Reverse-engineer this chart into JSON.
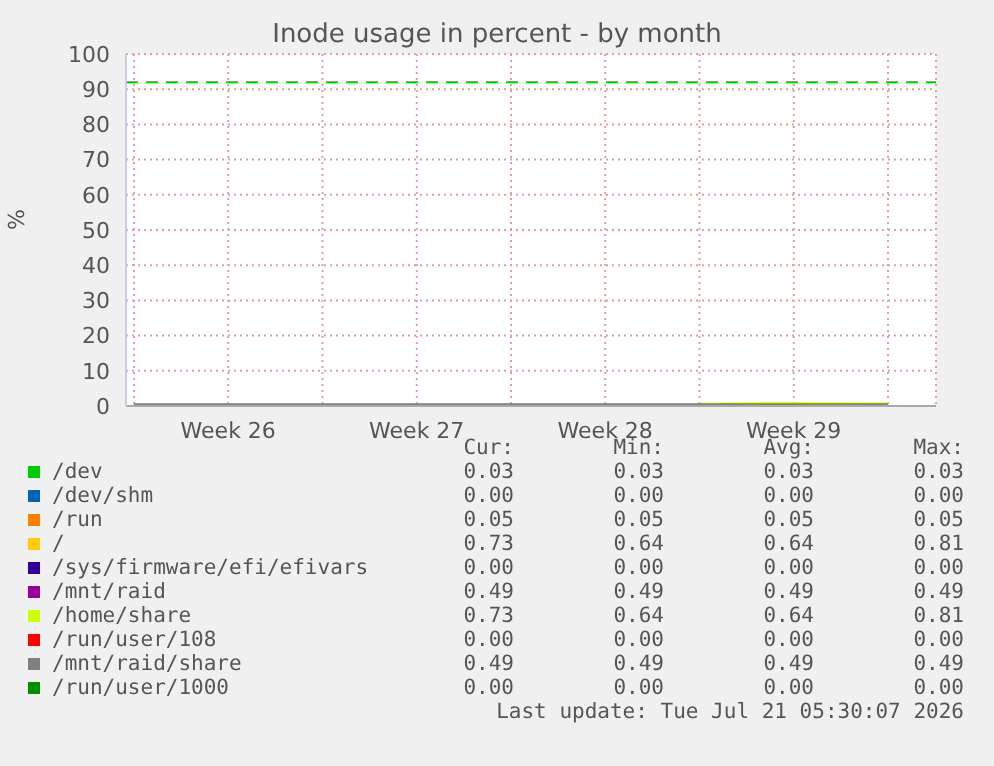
{
  "chart_data": {
    "type": "line",
    "title": "Inode usage in percent - by month",
    "ylabel": "%",
    "categories": [
      null,
      "Week 26",
      null,
      "Week 27",
      null,
      "Week 28",
      null,
      "Week 29",
      null
    ],
    "ylim": [
      0,
      100
    ],
    "yticks": [
      0,
      10,
      20,
      30,
      40,
      50,
      60,
      70,
      80,
      90,
      100
    ],
    "grid": true,
    "legend": "bottom",
    "marker": "none",
    "line_style": "solid",
    "series": [
      {
        "name": "/dev",
        "color": "#00cc00",
        "values": [
          null,
          null,
          null,
          null,
          null,
          null,
          null,
          null,
          null
        ]
      },
      {
        "name": "/dev/shm",
        "color": "#0066b3",
        "values": [
          null,
          null,
          null,
          null,
          null,
          null,
          null,
          null,
          null
        ]
      },
      {
        "name": "/run",
        "color": "#ff8000",
        "values": [
          null,
          null,
          null,
          null,
          null,
          null,
          null,
          null,
          null
        ]
      },
      {
        "name": "/",
        "color": "#ffcc00",
        "values": [
          null,
          null,
          null,
          null,
          null,
          null,
          null,
          null,
          null
        ]
      },
      {
        "name": "/sys/firmware/efi/efivars",
        "color": "#330099",
        "values": [
          null,
          null,
          null,
          null,
          null,
          null,
          null,
          null,
          null
        ]
      },
      {
        "name": "/mnt/raid",
        "color": "#990099",
        "values": [
          null,
          null,
          null,
          null,
          null,
          null,
          null,
          null,
          null
        ]
      },
      {
        "name": "/home/share",
        "color": "#ccff00",
        "values": [
          null,
          null,
          null,
          null,
          null,
          null,
          0.64,
          0.81,
          0.73
        ]
      },
      {
        "name": "/run/user/108",
        "color": "#ff0000",
        "values": [
          null,
          null,
          null,
          null,
          null,
          null,
          null,
          null,
          null
        ]
      },
      {
        "name": "/mnt/raid/share",
        "color": "#808080",
        "values": [
          0.49,
          0.49,
          0.49,
          0.49,
          0.49,
          0.49,
          0.49,
          0.49,
          0.49
        ]
      },
      {
        "name": "/run/user/1000",
        "color": "#008f00",
        "values": [
          null,
          null,
          null,
          null,
          null,
          null,
          null,
          null,
          null
        ]
      }
    ],
    "ref_lines": [
      {
        "axis": "y",
        "value": 92,
        "label": null,
        "color": "#00cc00",
        "line_style": "dashed"
      }
    ],
    "annotations": [
      "Cur:",
      "Min:",
      "Avg:",
      "Max:",
      "0.03",
      "0.03",
      "0.03",
      "0.03",
      "0.00",
      "0.00",
      "0.00",
      "0.00",
      "0.05",
      "0.05",
      "0.05",
      "0.05",
      "0.73",
      "0.64",
      "0.64",
      "0.81",
      "0.00",
      "0.00",
      "0.00",
      "0.00",
      "0.49",
      "0.49",
      "0.49",
      "0.49",
      "0.73",
      "0.64",
      "0.64",
      "0.81",
      "0.00",
      "0.00",
      "0.00",
      "0.00",
      "0.49",
      "0.49",
      "0.49",
      "0.49",
      "0.00",
      "0.00",
      "0.00",
      "0.00",
      "Last update: Tue Jul 21 05:30:07 2026"
    ]
  }
}
